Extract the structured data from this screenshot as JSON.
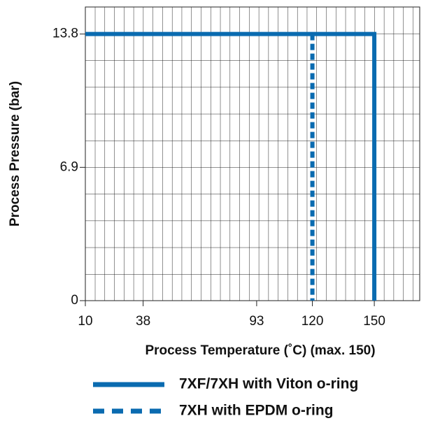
{
  "chart_data": {
    "type": "line",
    "xlabel": "Process Temperature (˚C) (max. 150)",
    "ylabel": "Process Pressure (bar)",
    "xlim": [
      10,
      172
    ],
    "ylim": [
      0,
      15.2
    ],
    "xticks": [
      10,
      38,
      93,
      120,
      150
    ],
    "yticks": [
      0,
      6.9,
      13.8
    ],
    "grid": true,
    "series": [
      {
        "name": "7XF/7XH with Viton o-ring",
        "color": "#0a6bb0",
        "dash": "solid",
        "x": [
          10,
          150,
          150
        ],
        "values": [
          13.8,
          13.8,
          0
        ]
      },
      {
        "name": "7XH with EPDM o-ring",
        "color": "#0a6bb0",
        "dash": "dashed",
        "x": [
          120,
          120
        ],
        "values": [
          13.8,
          0
        ]
      }
    ]
  }
}
